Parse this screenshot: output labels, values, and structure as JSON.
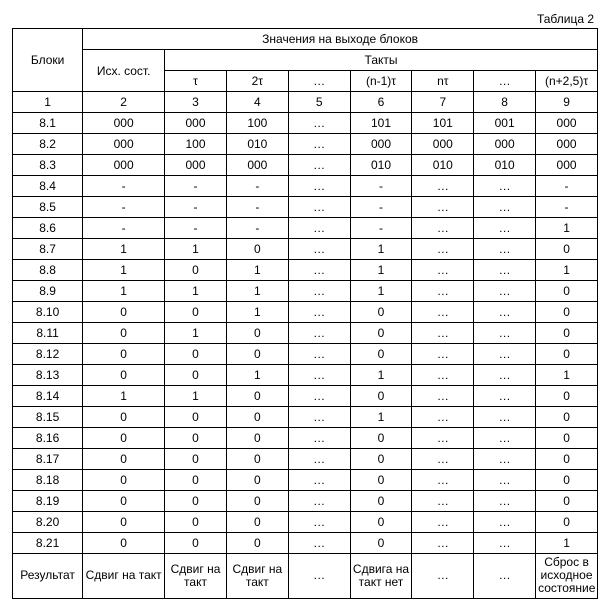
{
  "caption": "Таблица 2",
  "header": {
    "blocks": "Блоки",
    "values": "Значения на выходе блоков",
    "initial": "Исх. сост.",
    "ticks": "Такты",
    "tickLabels": [
      "τ",
      "2τ",
      "…",
      "(n-1)τ",
      "nτ",
      "…",
      "(n+2,5)τ"
    ],
    "numRow": [
      "1",
      "2",
      "3",
      "4",
      "5",
      "6",
      "7",
      "8",
      "9"
    ]
  },
  "rows": [
    {
      "b": "8.1",
      "v": [
        "000",
        "000",
        "100",
        "…",
        "101",
        "101",
        "001",
        "000"
      ]
    },
    {
      "b": "8.2",
      "v": [
        "000",
        "100",
        "010",
        "…",
        "000",
        "000",
        "000",
        "000"
      ]
    },
    {
      "b": "8.3",
      "v": [
        "000",
        "000",
        "000",
        "…",
        "010",
        "010",
        "010",
        "000"
      ]
    },
    {
      "b": "8.4",
      "v": [
        "-",
        "-",
        "-",
        "…",
        "-",
        "…",
        "…",
        "-"
      ]
    },
    {
      "b": "8.5",
      "v": [
        "-",
        "-",
        "-",
        "…",
        "-",
        "…",
        "…",
        "-"
      ]
    },
    {
      "b": "8.6",
      "v": [
        "-",
        "-",
        "-",
        "…",
        "-",
        "…",
        "…",
        "1"
      ]
    },
    {
      "b": "8.7",
      "v": [
        "1",
        "1",
        "0",
        "…",
        "1",
        "…",
        "…",
        "0"
      ]
    },
    {
      "b": "8.8",
      "v": [
        "1",
        "0",
        "1",
        "…",
        "1",
        "…",
        "…",
        "1"
      ]
    },
    {
      "b": "8.9",
      "v": [
        "1",
        "1",
        "1",
        "…",
        "1",
        "…",
        "…",
        "0"
      ]
    },
    {
      "b": "8.10",
      "v": [
        "0",
        "0",
        "1",
        "…",
        "0",
        "…",
        "…",
        "0"
      ]
    },
    {
      "b": "8.11",
      "v": [
        "0",
        "1",
        "0",
        "…",
        "0",
        "…",
        "…",
        "0"
      ]
    },
    {
      "b": "8.12",
      "v": [
        "0",
        "0",
        "0",
        "…",
        "0",
        "…",
        "…",
        "0"
      ]
    },
    {
      "b": "8.13",
      "v": [
        "0",
        "0",
        "1",
        "…",
        "1",
        "…",
        "…",
        "1"
      ]
    },
    {
      "b": "8.14",
      "v": [
        "1",
        "1",
        "0",
        "…",
        "0",
        "…",
        "…",
        "0"
      ]
    },
    {
      "b": "8.15",
      "v": [
        "0",
        "0",
        "0",
        "…",
        "1",
        "…",
        "…",
        "0"
      ]
    },
    {
      "b": "8.16",
      "v": [
        "0",
        "0",
        "0",
        "…",
        "0",
        "…",
        "…",
        "0"
      ]
    },
    {
      "b": "8.17",
      "v": [
        "0",
        "0",
        "0",
        "…",
        "0",
        "…",
        "…",
        "0"
      ]
    },
    {
      "b": "8.18",
      "v": [
        "0",
        "0",
        "0",
        "…",
        "0",
        "…",
        "…",
        "0"
      ]
    },
    {
      "b": "8.19",
      "v": [
        "0",
        "0",
        "0",
        "…",
        "0",
        "…",
        "…",
        "0"
      ]
    },
    {
      "b": "8.20",
      "v": [
        "0",
        "0",
        "0",
        "…",
        "0",
        "…",
        "…",
        "0"
      ]
    },
    {
      "b": "8.21",
      "v": [
        "0",
        "0",
        "0",
        "…",
        "0",
        "…",
        "…",
        "1"
      ]
    }
  ],
  "result": {
    "label": "Результат",
    "cells": [
      "Сдвиг на такт",
      "Сдвиг на такт",
      "Сдвиг на такт",
      "…",
      "Сдвига на такт нет",
      "…",
      "…",
      "Сброс в исходное состояние"
    ]
  }
}
